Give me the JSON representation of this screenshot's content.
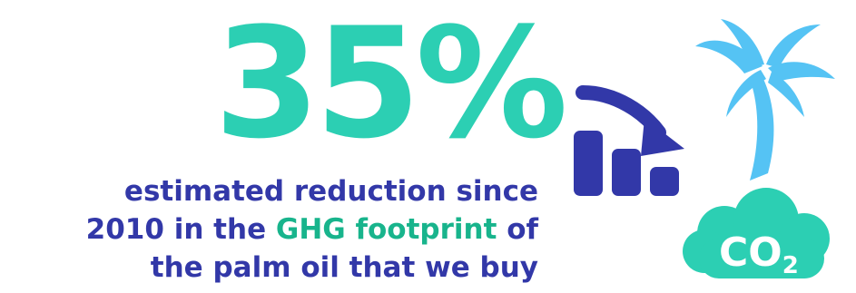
{
  "headline": {
    "value": "35%"
  },
  "caption": {
    "line1": "estimated reduction since",
    "line2_before": "2010 in the ",
    "line2_highlight": "GHG footprint",
    "line2_after": " of",
    "line3": "the palm oil that we buy"
  },
  "co2_badge": {
    "main": "CO",
    "subscript": "2"
  },
  "icons": {
    "chart": "decreasing-bar-chart-icon",
    "palm": "palm-tree-icon",
    "co2": "co2-cloud-icon"
  },
  "colors": {
    "headline": "#2ccfb3",
    "caption": "#3238a8",
    "highlight": "#18b48c",
    "chart_icon": "#3238a8",
    "palm_icon": "#55c3f4",
    "cloud_icon": "#2ccfb3"
  }
}
